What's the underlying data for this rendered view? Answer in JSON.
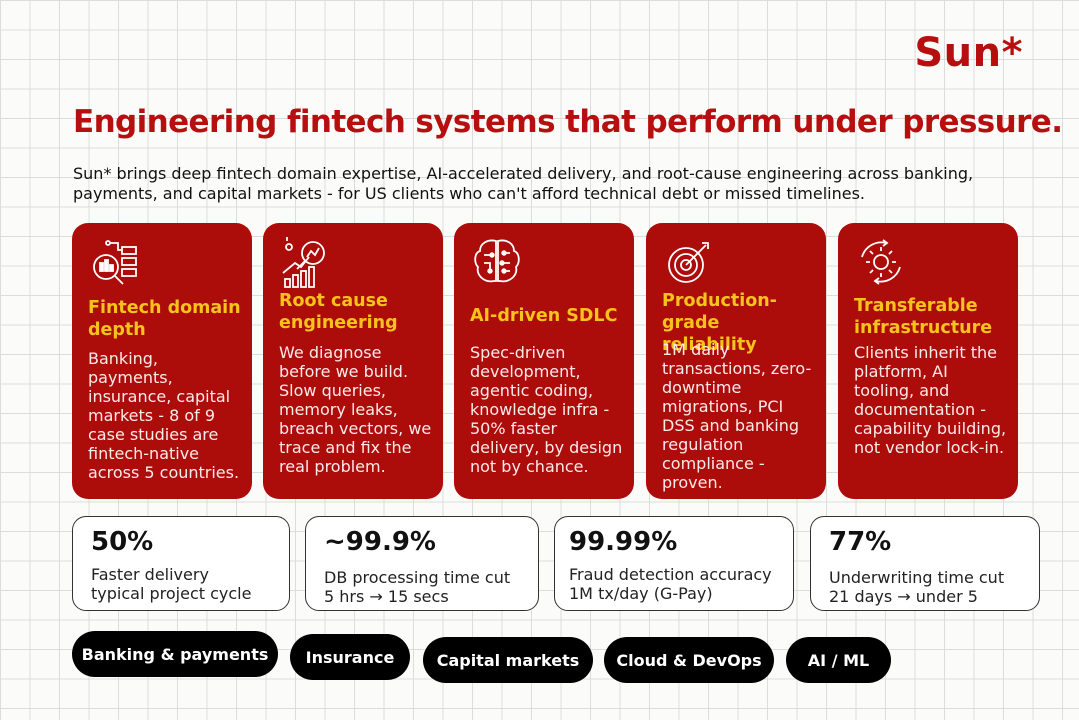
{
  "brand": {
    "logo": "Sun*",
    "accent": "#b70f0f",
    "card_bg": "#ad0d0a",
    "title_color": "#f6c21b"
  },
  "headline": "Engineering fintech systems that perform under pressure.",
  "intro": "Sun* brings deep fintech domain expertise, AI-accelerated delivery, and root-cause engineering across banking, payments, and capital markets - for US clients who can't afford technical debt or missed timelines.",
  "cards": [
    {
      "icon": "data-analysis-icon",
      "title": "Fintech domain depth",
      "desc": "Banking, payments, insurance, capital markets - 8 of 9 case studies are fintech-native across 5 countries."
    },
    {
      "icon": "growth-chart-magnifier-icon",
      "title": "Root cause engineering",
      "desc": "We diagnose before we build. Slow queries, memory leaks, breach vectors, we trace and fix the real problem."
    },
    {
      "icon": "ai-brain-icon",
      "title": "AI-driven SDLC",
      "desc": "Spec-driven development, agentic coding, knowledge infra - 50% faster delivery, by design not by chance."
    },
    {
      "icon": "target-icon",
      "title": "Production-grade reliability",
      "desc": "1M daily transactions, zero-downtime migrations, PCI DSS and banking regulation compliance - proven."
    },
    {
      "icon": "gear-cycle-icon",
      "title": "Transferable infrastructure",
      "desc": "Clients inherit the platform, AI tooling, and documentation - capability building, not vendor lock-in."
    }
  ],
  "stats": [
    {
      "value": "50%",
      "line1": "Faster delivery",
      "line2": "typical project cycle"
    },
    {
      "value": "~99.9%",
      "line1": "DB processing time cut",
      "line2": "5 hrs → 15 secs"
    },
    {
      "value": "99.99%",
      "line1": "Fraud detection accuracy",
      "line2": "1M tx/day (G-Pay)"
    },
    {
      "value": "77%",
      "line1": "Underwriting time cut",
      "line2": "21 days → under 5"
    }
  ],
  "tags": [
    "Banking & payments",
    "Insurance",
    "Capital markets",
    "Cloud & DevOps",
    "AI / ML"
  ]
}
